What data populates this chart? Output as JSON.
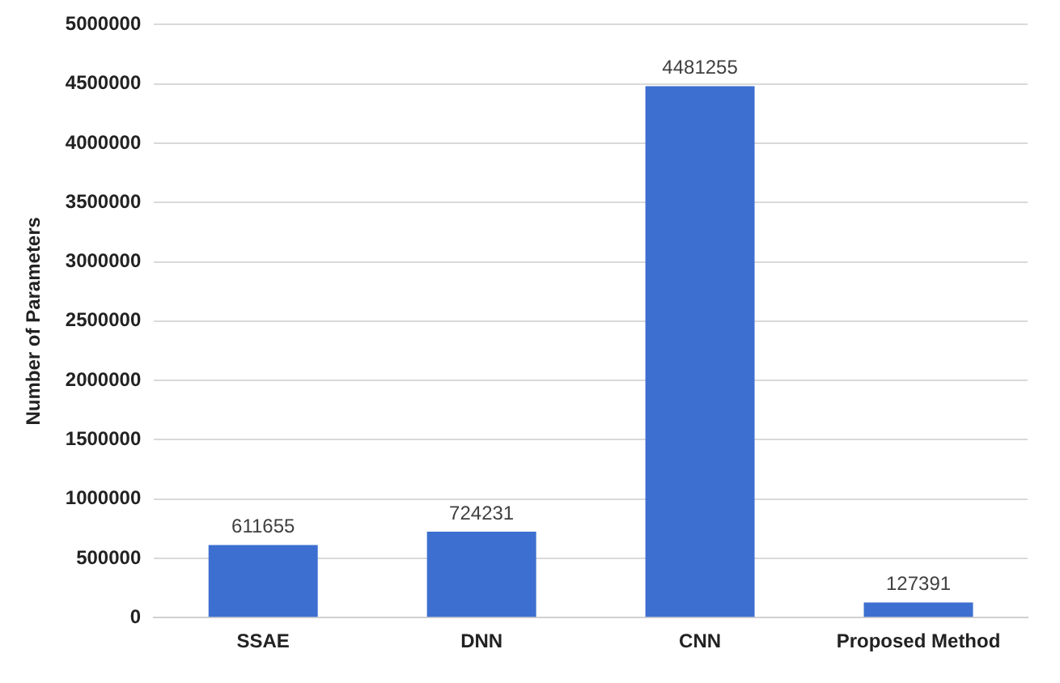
{
  "chart_data": {
    "type": "bar",
    "ylabel": "Number of Parameters",
    "categories": [
      "SSAE",
      "DNN",
      "CNN",
      "Proposed Method"
    ],
    "values": [
      611655,
      724231,
      4481255,
      127391
    ],
    "color": "#3d6fd0",
    "ylim": [
      0,
      5000000
    ],
    "yticks": [
      0,
      500000,
      1000000,
      1500000,
      2000000,
      2500000,
      3000000,
      3500000,
      4000000,
      4500000,
      5000000
    ],
    "grid": "y",
    "data_labels": true,
    "legend": false
  }
}
